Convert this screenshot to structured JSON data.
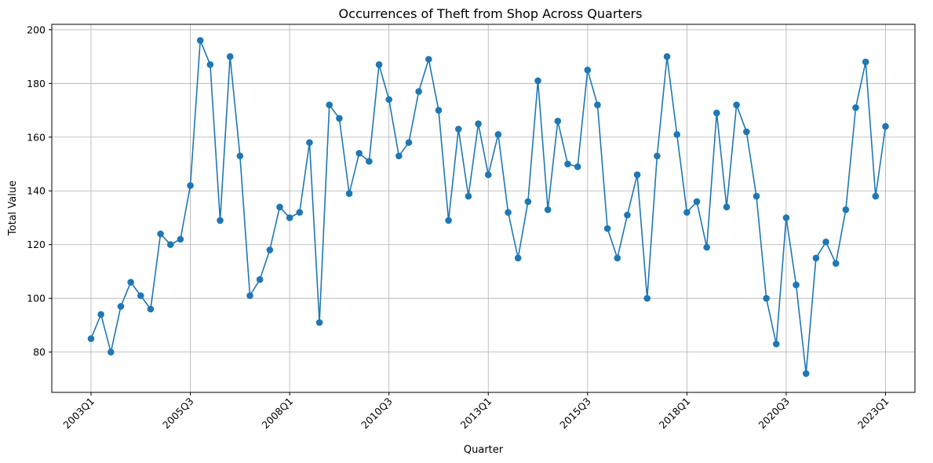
{
  "chart_data": {
    "type": "line",
    "title": "Occurrences of Theft from Shop Across Quarters",
    "xlabel": "Quarter",
    "ylabel": "Total Value",
    "x_start": "2003Q1",
    "x_ticks": [
      "2003Q1",
      "2005Q3",
      "2008Q1",
      "2010Q3",
      "2013Q1",
      "2015Q3",
      "2018Q1",
      "2020Q3",
      "2023Q1"
    ],
    "y_ticks": [
      80,
      100,
      120,
      140,
      160,
      180,
      200
    ],
    "ylim": [
      65,
      202
    ],
    "grid": true,
    "color": "#1f77b4",
    "series": [
      {
        "x": [
          "2003Q1",
          "2003Q2",
          "2003Q3",
          "2003Q4",
          "2004Q1",
          "2004Q2",
          "2004Q3",
          "2004Q4",
          "2005Q1",
          "2005Q2",
          "2005Q3",
          "2005Q4",
          "2006Q1",
          "2006Q2",
          "2006Q3",
          "2006Q4",
          "2007Q1",
          "2007Q2",
          "2007Q3",
          "2007Q4",
          "2008Q1",
          "2008Q2",
          "2008Q3",
          "2008Q4",
          "2009Q1",
          "2009Q2",
          "2009Q3",
          "2009Q4",
          "2010Q1",
          "2010Q2",
          "2010Q3",
          "2010Q4",
          "2011Q1",
          "2011Q2",
          "2011Q3",
          "2011Q4",
          "2012Q1",
          "2012Q2",
          "2012Q3",
          "2012Q4",
          "2013Q1",
          "2013Q2",
          "2013Q3",
          "2013Q4",
          "2014Q1",
          "2014Q2",
          "2014Q3",
          "2014Q4",
          "2015Q1",
          "2015Q2",
          "2015Q3",
          "2015Q4",
          "2016Q1",
          "2016Q2",
          "2016Q3",
          "2016Q4",
          "2017Q1",
          "2017Q2",
          "2017Q3",
          "2017Q4",
          "2018Q1",
          "2018Q2",
          "2018Q3",
          "2018Q4",
          "2019Q1",
          "2019Q2",
          "2019Q3",
          "2019Q4",
          "2020Q1",
          "2020Q2",
          "2020Q3",
          "2020Q4",
          "2021Q1",
          "2021Q2",
          "2021Q3",
          "2021Q4",
          "2022Q1",
          "2022Q2",
          "2022Q3",
          "2022Q4",
          "2023Q1"
        ],
        "values": [
          85,
          94,
          80,
          97,
          106,
          101,
          96,
          124,
          120,
          122,
          142,
          196,
          187,
          129,
          190,
          153,
          101,
          107,
          118,
          134,
          130,
          132,
          158,
          91,
          172,
          167,
          139,
          154,
          151,
          187,
          174,
          153,
          158,
          177,
          189,
          170,
          129,
          163,
          138,
          165,
          146,
          161,
          132,
          115,
          136,
          181,
          133,
          166,
          150,
          149,
          185,
          172,
          126,
          115,
          131,
          146,
          100,
          153,
          190,
          161,
          132,
          136,
          119,
          169,
          134,
          172,
          162,
          138,
          100,
          83,
          130,
          105,
          72,
          115,
          121,
          113,
          133,
          171,
          188,
          138,
          164
        ]
      }
    ]
  }
}
